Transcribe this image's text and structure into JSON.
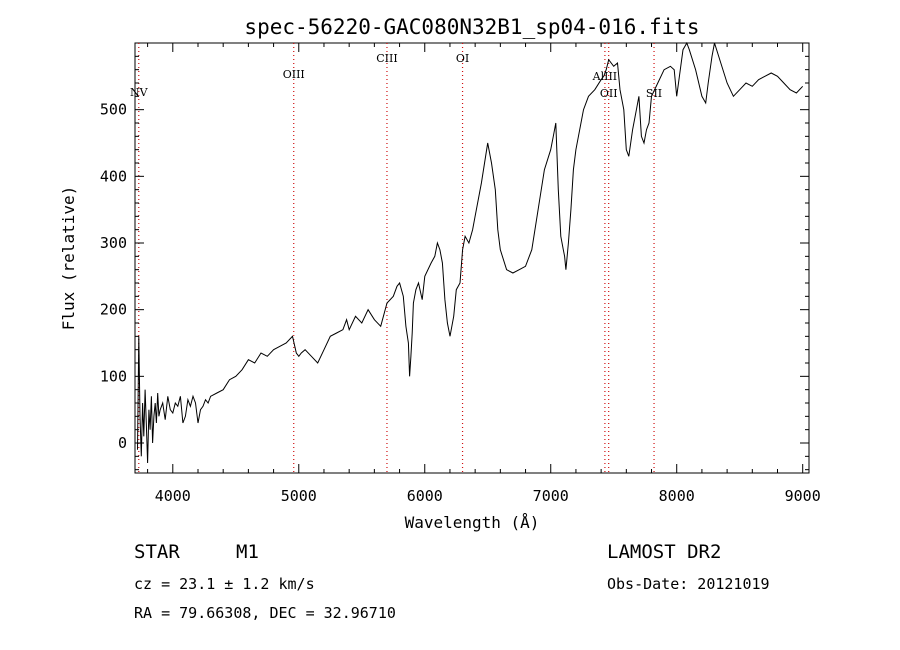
{
  "chart_data": {
    "type": "line",
    "title": "spec-56220-GAC080N32B1_sp04-016.fits",
    "xlabel": "Wavelength (Å)",
    "ylabel": "Flux (relative)",
    "xlim": [
      3700,
      9050
    ],
    "ylim": [
      -45,
      600
    ],
    "xticks": [
      4000,
      5000,
      6000,
      7000,
      8000,
      9000
    ],
    "yticks": [
      0,
      100,
      200,
      300,
      400,
      500
    ],
    "grid": false,
    "series": [
      {
        "name": "flux",
        "x": [
          3720,
          3730,
          3740,
          3750,
          3760,
          3770,
          3780,
          3790,
          3800,
          3810,
          3820,
          3830,
          3840,
          3850,
          3860,
          3870,
          3880,
          3890,
          3900,
          3920,
          3940,
          3960,
          3980,
          4000,
          4020,
          4040,
          4060,
          4080,
          4100,
          4120,
          4140,
          4160,
          4180,
          4200,
          4220,
          4240,
          4260,
          4280,
          4300,
          4350,
          4400,
          4450,
          4500,
          4550,
          4600,
          4650,
          4700,
          4750,
          4800,
          4850,
          4900,
          4950,
          4980,
          5000,
          5020,
          5050,
          5100,
          5150,
          5200,
          5250,
          5300,
          5350,
          5380,
          5400,
          5450,
          5500,
          5550,
          5600,
          5650,
          5700,
          5750,
          5780,
          5800,
          5830,
          5850,
          5870,
          5880,
          5890,
          5900,
          5910,
          5930,
          5950,
          5980,
          6000,
          6050,
          6080,
          6100,
          6120,
          6140,
          6160,
          6180,
          6200,
          6230,
          6250,
          6280,
          6300,
          6320,
          6350,
          6380,
          6400,
          6450,
          6500,
          6530,
          6560,
          6580,
          6600,
          6650,
          6700,
          6750,
          6800,
          6850,
          6900,
          6950,
          7000,
          7020,
          7040,
          7060,
          7080,
          7100,
          7110,
          7120,
          7140,
          7160,
          7180,
          7200,
          7230,
          7260,
          7300,
          7350,
          7400,
          7420,
          7440,
          7460,
          7500,
          7530,
          7550,
          7580,
          7600,
          7620,
          7650,
          7680,
          7700,
          7720,
          7740,
          7760,
          7780,
          7800,
          7850,
          7900,
          7950,
          7980,
          8000,
          8050,
          8080,
          8100,
          8150,
          8200,
          8230,
          8250,
          8280,
          8300,
          8350,
          8400,
          8450,
          8500,
          8550,
          8600,
          8650,
          8700,
          8750,
          8800,
          8850,
          8900,
          8950,
          9000
        ],
        "y": [
          -10,
          160,
          40,
          -20,
          60,
          10,
          80,
          30,
          -30,
          50,
          20,
          70,
          0,
          40,
          60,
          30,
          75,
          40,
          50,
          60,
          35,
          70,
          50,
          45,
          60,
          55,
          70,
          30,
          40,
          65,
          55,
          70,
          60,
          30,
          50,
          55,
          65,
          60,
          70,
          75,
          80,
          95,
          100,
          110,
          125,
          120,
          135,
          130,
          140,
          145,
          150,
          160,
          135,
          130,
          135,
          140,
          130,
          120,
          140,
          160,
          165,
          170,
          185,
          170,
          190,
          180,
          200,
          185,
          175,
          210,
          220,
          235,
          240,
          220,
          175,
          150,
          100,
          130,
          165,
          210,
          230,
          240,
          215,
          250,
          270,
          280,
          300,
          290,
          270,
          215,
          180,
          160,
          190,
          230,
          240,
          290,
          310,
          300,
          320,
          340,
          390,
          450,
          420,
          380,
          320,
          290,
          260,
          255,
          260,
          265,
          290,
          350,
          410,
          440,
          460,
          480,
          380,
          310,
          290,
          280,
          260,
          300,
          350,
          410,
          440,
          470,
          500,
          520,
          530,
          545,
          550,
          560,
          575,
          565,
          570,
          530,
          500,
          440,
          430,
          470,
          500,
          520,
          460,
          450,
          470,
          480,
          520,
          540,
          560,
          565,
          560,
          520,
          590,
          600,
          590,
          560,
          520,
          510,
          540,
          580,
          600,
          570,
          540,
          520,
          530,
          540,
          535,
          545,
          550,
          555,
          550,
          540,
          530,
          525,
          535
        ]
      }
    ],
    "line_markers": [
      {
        "label": "NV",
        "wavelength": 3730
      },
      {
        "label": "OIII",
        "wavelength": 4960
      },
      {
        "label": "CIII",
        "wavelength": 5700
      },
      {
        "label": "OI",
        "wavelength": 6300
      },
      {
        "label": "AlIII",
        "wavelength": 7430
      },
      {
        "label": "OII",
        "wavelength": 7460
      },
      {
        "label": "SII",
        "wavelength": 7820
      }
    ]
  },
  "info": {
    "object_class": "STAR",
    "subclass": "M1",
    "survey": "LAMOST DR2",
    "cz": "cz = 23.1 ± 1.2 km/s",
    "obs_date": "Obs-Date: 20121019",
    "coordinates": "RA =  79.66308, DEC =  32.96710"
  }
}
